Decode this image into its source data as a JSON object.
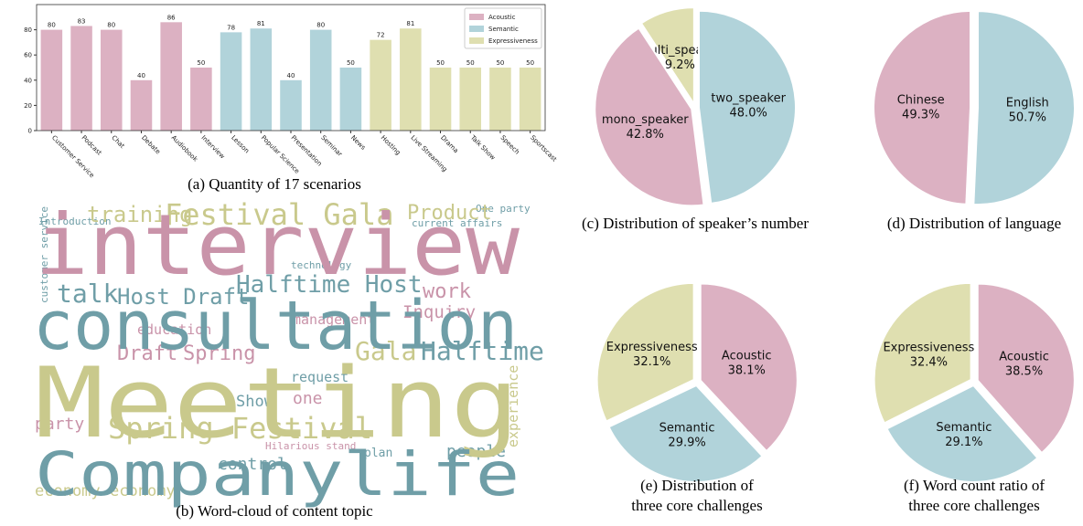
{
  "chart_data": [
    {
      "type": "bar",
      "caption": [
        "(a) Quantity of 17 scenarios"
      ],
      "categories": [
        "Customer Service",
        "Podcast",
        "Chat",
        "Debate",
        "Audiobook",
        "Interview",
        "Lesson",
        "Popular Science",
        "Presentation",
        "Seminar",
        "News",
        "Hosting",
        "Live Streaming",
        "Drama",
        "Talk Show",
        "Speech",
        "Sportscast"
      ],
      "series": [
        {
          "name": "Acoustic",
          "color": "#dcb1c2",
          "values": [
            80,
            83,
            80,
            40,
            86,
            50,
            null,
            null,
            null,
            null,
            null,
            null,
            null,
            null,
            null,
            null,
            null
          ]
        },
        {
          "name": "Semantic",
          "color": "#b1d3da",
          "values": [
            null,
            null,
            null,
            null,
            null,
            null,
            78,
            81,
            40,
            80,
            50,
            null,
            null,
            null,
            null,
            null,
            null
          ]
        },
        {
          "name": "Expressiveness",
          "color": "#dfdfb0",
          "values": [
            null,
            null,
            null,
            null,
            null,
            null,
            null,
            null,
            null,
            null,
            null,
            72,
            81,
            50,
            50,
            50,
            50
          ]
        }
      ],
      "ylim": [
        0,
        100
      ],
      "yticks": [
        0,
        20,
        40,
        60,
        80
      ],
      "legend": "upper right"
    },
    {
      "type": "wordcloud",
      "caption": [
        "(b) Word-cloud of content topic"
      ],
      "words": [
        "Introduction",
        "current affairs",
        "One party",
        "technology",
        "education",
        "management",
        "Hilarious stand",
        "plan",
        "request",
        "one",
        "Show",
        "party",
        "people",
        "control",
        "economy",
        "economy",
        "training",
        "Product",
        "Festival Gala",
        "talk",
        "Host Draft",
        "Halftime Host",
        "work",
        "Inquiry",
        "Draft",
        "Spring",
        "Gala",
        "Halftime",
        "Spring Festival",
        "customer service",
        "experience",
        "interview",
        "consultation",
        "Meeting",
        "Companylife"
      ]
    },
    {
      "type": "pie",
      "caption": [
        "(c) Distribution of speaker’s number"
      ],
      "labels": [
        "multi_speaker",
        "mono_speaker",
        "two_speaker"
      ],
      "values": [
        9.2,
        42.8,
        48.0
      ],
      "value_labels": [
        "9.2%",
        "42.8%",
        "48.0%"
      ],
      "colors": [
        "#dfdfb0",
        "#dcb1c2",
        "#b1d3da"
      ]
    },
    {
      "type": "pie",
      "caption": [
        "(d) Distribution of language"
      ],
      "labels": [
        "Chinese",
        "English"
      ],
      "values": [
        49.3,
        50.7
      ],
      "value_labels": [
        "49.3%",
        "50.7%"
      ],
      "colors": [
        "#dcb1c2",
        "#b1d3da"
      ]
    },
    {
      "type": "pie",
      "caption": [
        "(e) Distribution of",
        "three core challenges"
      ],
      "labels": [
        "Expressiveness",
        "Semantic",
        "Acoustic"
      ],
      "values": [
        32.1,
        29.9,
        38.1
      ],
      "value_labels": [
        "32.1%",
        "29.9%",
        "38.1%"
      ],
      "colors": [
        "#dfdfb0",
        "#b1d3da",
        "#dcb1c2"
      ]
    },
    {
      "type": "pie",
      "caption": [
        "(f) Word count ratio of",
        "three core challenges"
      ],
      "labels": [
        "Expressiveness",
        "Semantic",
        "Acoustic"
      ],
      "values": [
        32.4,
        29.1,
        38.5
      ],
      "value_labels": [
        "32.4%",
        "29.1%",
        "38.5%"
      ],
      "colors": [
        "#dfdfb0",
        "#b1d3da",
        "#dcb1c2"
      ]
    }
  ]
}
